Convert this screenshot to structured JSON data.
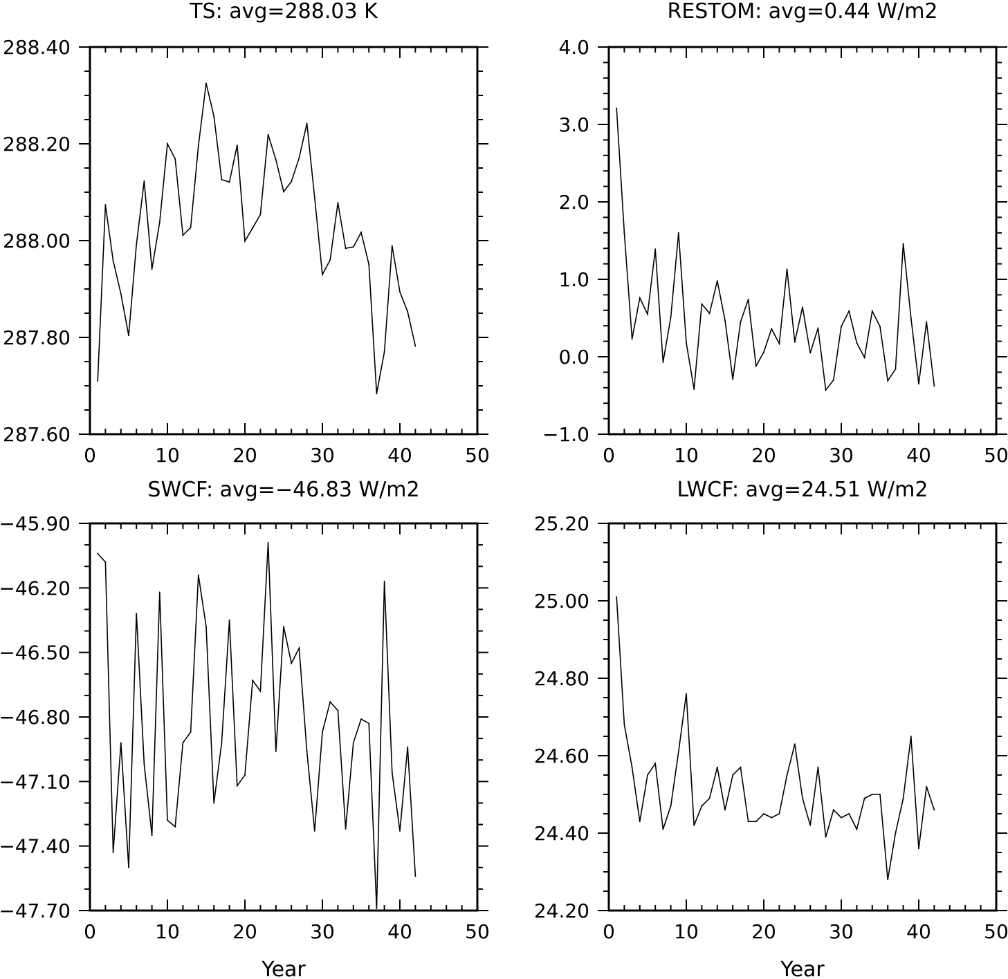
{
  "chart_data": [
    {
      "type": "line",
      "title": "TS: avg=288.03 K",
      "xlabel": "",
      "ylabel": "",
      "xlim": [
        0,
        50
      ],
      "ylim": [
        287.6,
        288.4
      ],
      "xticks": [
        "0",
        "10",
        "20",
        "30",
        "40",
        "50"
      ],
      "yticks": [
        "287.60",
        "287.80",
        "288.00",
        "288.20",
        "288.40"
      ],
      "grid": false,
      "x": [
        1,
        2,
        3,
        4,
        5,
        6,
        7,
        8,
        9,
        10,
        11,
        12,
        13,
        14,
        15,
        16,
        17,
        18,
        19,
        20,
        21,
        22,
        23,
        24,
        25,
        26,
        27,
        28,
        29,
        30,
        31,
        32,
        33,
        34,
        35,
        36,
        37,
        38,
        39,
        40,
        41,
        42
      ],
      "values": [
        287.71,
        288.074,
        287.958,
        287.89,
        287.804,
        287.992,
        288.123,
        287.941,
        288.038,
        288.2,
        288.169,
        288.011,
        288.027,
        288.196,
        288.325,
        288.257,
        288.126,
        288.121,
        288.197,
        287.999,
        288.026,
        288.054,
        288.219,
        288.167,
        288.101,
        288.122,
        288.171,
        288.242,
        288.089,
        287.93,
        287.96,
        288.078,
        287.984,
        287.987,
        288.017,
        287.951,
        287.684,
        287.77,
        287.989,
        287.894,
        287.853,
        287.782
      ]
    },
    {
      "type": "line",
      "title": "RESTOM: avg=0.44 W/m2",
      "xlabel": "",
      "ylabel": "",
      "xlim": [
        0,
        50
      ],
      "ylim": [
        -1.0,
        4.0
      ],
      "xticks": [
        "0",
        "10",
        "20",
        "30",
        "40",
        "50"
      ],
      "yticks": [
        "−1.0",
        "0.0",
        "1.0",
        "2.0",
        "3.0",
        "4.0"
      ],
      "grid": false,
      "x": [
        1,
        2,
        3,
        4,
        5,
        6,
        7,
        8,
        9,
        10,
        11,
        12,
        13,
        14,
        15,
        16,
        17,
        18,
        19,
        20,
        21,
        22,
        23,
        24,
        25,
        26,
        27,
        28,
        29,
        30,
        31,
        32,
        33,
        34,
        35,
        36,
        37,
        38,
        39,
        40,
        41,
        42
      ],
      "values": [
        3.21,
        1.6,
        0.23,
        0.76,
        0.55,
        1.39,
        -0.07,
        0.51,
        1.6,
        0.18,
        -0.42,
        0.68,
        0.56,
        0.98,
        0.47,
        -0.29,
        0.45,
        0.74,
        -0.12,
        0.06,
        0.36,
        0.17,
        1.13,
        0.19,
        0.64,
        0.05,
        0.37,
        -0.43,
        -0.3,
        0.39,
        0.59,
        0.18,
        -0.01,
        0.59,
        0.39,
        -0.31,
        -0.16,
        1.46,
        0.5,
        -0.35,
        0.45,
        -0.38
      ]
    },
    {
      "type": "line",
      "title": "SWCF: avg=−46.83 W/m2",
      "xlabel": "Year",
      "ylabel": "",
      "xlim": [
        0,
        50
      ],
      "ylim": [
        -47.7,
        -45.9
      ],
      "xticks": [
        "0",
        "10",
        "20",
        "30",
        "40",
        "50"
      ],
      "yticks": [
        "−47.70",
        "−47.40",
        "−47.10",
        "−46.80",
        "−46.50",
        "−46.20",
        "−45.90"
      ],
      "grid": false,
      "x": [
        1,
        2,
        3,
        4,
        5,
        6,
        7,
        8,
        9,
        10,
        11,
        12,
        13,
        14,
        15,
        16,
        17,
        18,
        19,
        20,
        21,
        22,
        23,
        24,
        25,
        26,
        27,
        28,
        29,
        30,
        31,
        32,
        33,
        34,
        35,
        36,
        37,
        38,
        39,
        40,
        41,
        42
      ],
      "values": [
        -46.04,
        -46.08,
        -47.43,
        -46.92,
        -47.5,
        -46.32,
        -47.02,
        -47.35,
        -46.22,
        -47.28,
        -47.31,
        -46.92,
        -46.87,
        -46.14,
        -46.38,
        -47.2,
        -46.92,
        -46.35,
        -47.12,
        -47.07,
        -46.63,
        -46.68,
        -45.99,
        -46.96,
        -46.38,
        -46.55,
        -46.48,
        -46.96,
        -47.33,
        -46.87,
        -46.73,
        -46.77,
        -47.32,
        -46.92,
        -46.81,
        -46.83,
        -47.69,
        -46.17,
        -47.06,
        -47.33,
        -46.94,
        -47.54
      ]
    },
    {
      "type": "line",
      "title": "LWCF: avg=24.51 W/m2",
      "xlabel": "Year",
      "ylabel": "",
      "xlim": [
        0,
        50
      ],
      "ylim": [
        24.2,
        25.2
      ],
      "xticks": [
        "0",
        "10",
        "20",
        "30",
        "40",
        "50"
      ],
      "yticks": [
        "24.20",
        "24.40",
        "24.60",
        "24.80",
        "25.00",
        "25.20"
      ],
      "grid": false,
      "x": [
        1,
        2,
        3,
        4,
        5,
        6,
        7,
        8,
        9,
        10,
        11,
        12,
        13,
        14,
        15,
        16,
        17,
        18,
        19,
        20,
        21,
        22,
        23,
        24,
        25,
        26,
        27,
        28,
        29,
        30,
        31,
        32,
        33,
        34,
        35,
        36,
        37,
        38,
        39,
        40,
        41,
        42
      ],
      "values": [
        25.01,
        24.68,
        24.57,
        24.43,
        24.55,
        24.58,
        24.41,
        24.47,
        24.61,
        24.76,
        24.42,
        24.47,
        24.49,
        24.57,
        24.46,
        24.55,
        24.57,
        24.43,
        24.43,
        24.45,
        24.44,
        24.45,
        24.55,
        24.63,
        24.49,
        24.42,
        24.57,
        24.39,
        24.46,
        24.44,
        24.45,
        24.41,
        24.49,
        24.5,
        24.5,
        24.28,
        24.4,
        24.49,
        24.65,
        24.36,
        24.52,
        24.46
      ]
    }
  ]
}
